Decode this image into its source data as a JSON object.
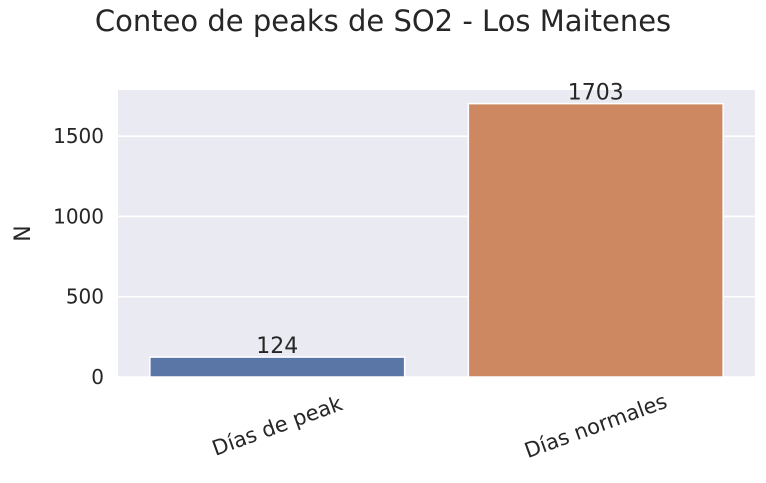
{
  "chart_data": {
    "type": "bar",
    "title": "Conteo de peaks de SO2 - Los Maitenes",
    "xlabel": "",
    "ylabel": "N",
    "categories": [
      "Días de peak",
      "Días normales"
    ],
    "values": [
      124,
      1703
    ],
    "data_labels": [
      "124",
      "1703"
    ],
    "yticks": [
      0,
      500,
      1000,
      1500
    ],
    "ytick_labels": [
      "0",
      "500",
      "1000",
      "1500"
    ],
    "ylim": [
      0,
      1788
    ],
    "grid": true,
    "colors": [
      "#5a76a7",
      "#cd8862"
    ],
    "background": "#eaeaf2"
  }
}
